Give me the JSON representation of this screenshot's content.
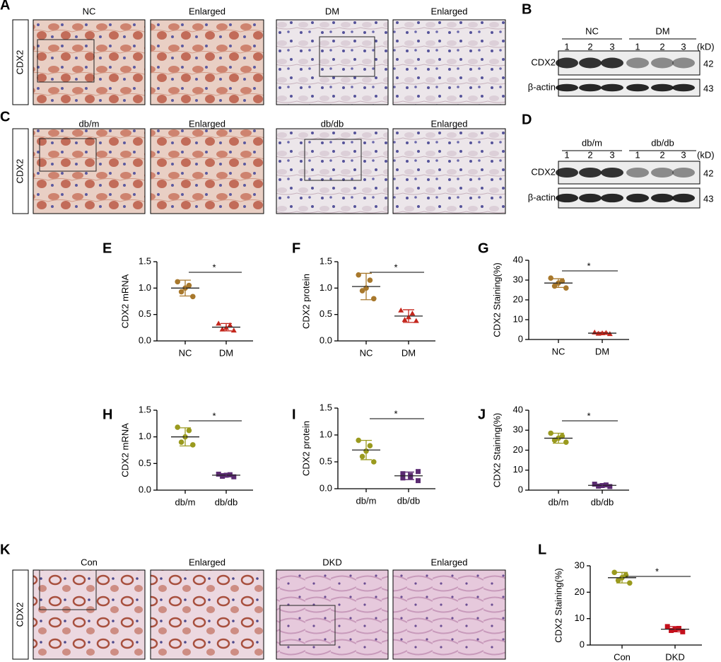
{
  "figure": {
    "panels": [
      {
        "letter": "A",
        "row_label": "CDX2",
        "images": [
          "NC",
          "Enlarged",
          "DM",
          "Enlarged"
        ]
      },
      {
        "letter": "C",
        "row_label": "CDX2",
        "images": [
          "db/m",
          "Enlarged",
          "db/db",
          "Enlarged"
        ]
      },
      {
        "letter": "K",
        "row_label": "CDX2",
        "images": [
          "Con",
          "Enlarged",
          "DKD",
          "Enlarged"
        ]
      }
    ],
    "blots": [
      {
        "letter": "B",
        "groups": [
          "NC",
          "DM"
        ],
        "lanes": [
          1,
          2,
          3,
          1,
          2,
          3
        ],
        "unit": "(kD)",
        "bands": [
          {
            "name": "CDX2",
            "kd": 42
          },
          {
            "name": "β-actin",
            "kd": 43
          }
        ]
      },
      {
        "letter": "D",
        "groups": [
          "db/m",
          "db/db"
        ],
        "lanes": [
          1,
          2,
          3,
          1,
          2,
          3
        ],
        "unit": "(kD)",
        "bands": [
          {
            "name": "CDX2",
            "kd": 42
          },
          {
            "name": "β-actin",
            "kd": 43
          }
        ]
      }
    ]
  },
  "chart_data": [
    {
      "type": "dot",
      "letter": "E",
      "ylabel": "CDX2 mRNA",
      "annotation": "*",
      "ylim": [
        0,
        1.5
      ],
      "yticks": [
        {
          "value": 0,
          "label": "0.0"
        },
        0.5,
        {
          "value": 1,
          "label": "1.0"
        },
        1.5
      ],
      "groups": [
        {
          "name": "NC",
          "color": "#a8782c",
          "marker": "circle",
          "values": [
            0.84,
            0.93,
            1.0,
            1.05,
            1.12
          ],
          "mean": 1.0,
          "sd": 0.15
        },
        {
          "name": "DM",
          "color": "#c4261c",
          "marker": "triangle",
          "values": [
            0.2,
            0.22,
            0.25,
            0.3,
            0.33
          ],
          "mean": 0.26,
          "sd": 0.07
        }
      ]
    },
    {
      "type": "dot",
      "letter": "F",
      "ylabel": "CDX2 protein",
      "annotation": "*",
      "ylim": [
        0,
        1.5
      ],
      "yticks": [
        {
          "value": 0,
          "label": "0.0"
        },
        0.5,
        {
          "value": 1,
          "label": "1.0"
        },
        1.5
      ],
      "groups": [
        {
          "name": "NC",
          "color": "#a8782c",
          "marker": "circle",
          "values": [
            0.8,
            0.95,
            1.0,
            1.15,
            1.25
          ],
          "mean": 1.03,
          "sd": 0.25
        },
        {
          "name": "DM",
          "color": "#c4261c",
          "marker": "triangle",
          "values": [
            0.38,
            0.4,
            0.45,
            0.52,
            0.58
          ],
          "mean": 0.47,
          "sd": 0.12
        }
      ]
    },
    {
      "type": "dot",
      "letter": "G",
      "ylabel": "CDX2 Staining(%)",
      "annotation": "*",
      "ylim": [
        0,
        40
      ],
      "yticks": [
        0,
        10,
        20,
        30,
        40
      ],
      "groups": [
        {
          "name": "NC",
          "color": "#a8782c",
          "marker": "circle",
          "values": [
            26,
            27,
            28.5,
            29.5,
            31
          ],
          "mean": 28.5,
          "sd": 2.2
        },
        {
          "name": "DM",
          "color": "#c4261c",
          "marker": "triangle",
          "values": [
            2.8,
            3,
            3.2,
            3.4,
            3.6
          ],
          "mean": 3.2,
          "sd": 0.4
        }
      ]
    },
    {
      "type": "dot",
      "letter": "H",
      "ylabel": "CDX2 mRNA",
      "annotation": "*",
      "ylim": [
        0,
        1.5
      ],
      "yticks": [
        {
          "value": 0,
          "label": "0.0"
        },
        0.5,
        {
          "value": 1,
          "label": "1.0"
        },
        1.5
      ],
      "groups": [
        {
          "name": "db/m",
          "color": "#9a9a1e",
          "marker": "circle",
          "values": [
            0.85,
            0.9,
            1.0,
            1.12,
            1.18
          ],
          "mean": 1.0,
          "sd": 0.17
        },
        {
          "name": "db/db",
          "color": "#5b2b72",
          "marker": "square",
          "values": [
            0.25,
            0.26,
            0.28,
            0.29,
            0.3
          ],
          "mean": 0.28,
          "sd": 0.03
        }
      ]
    },
    {
      "type": "dot",
      "letter": "I",
      "ylabel": "CDX2 protein",
      "annotation": "*",
      "ylim": [
        0,
        1.5
      ],
      "yticks": [
        {
          "value": 0,
          "label": "0.0"
        },
        0.5,
        {
          "value": 1,
          "label": "1.0"
        },
        1.5
      ],
      "groups": [
        {
          "name": "db/m",
          "color": "#9a9a1e",
          "marker": "circle",
          "values": [
            0.5,
            0.6,
            0.7,
            0.8,
            0.9
          ],
          "mean": 0.72,
          "sd": 0.18
        },
        {
          "name": "db/db",
          "color": "#5b2b72",
          "marker": "square",
          "values": [
            0.15,
            0.2,
            0.22,
            0.25,
            0.28,
            0.32
          ],
          "mean": 0.24,
          "sd": 0.07
        }
      ]
    },
    {
      "type": "dot",
      "letter": "J",
      "ylabel": "CDX2 Staining(%)",
      "annotation": "*",
      "ylim": [
        0,
        40
      ],
      "yticks": [
        0,
        10,
        20,
        30,
        40
      ],
      "groups": [
        {
          "name": "db/m",
          "color": "#9a9a1e",
          "marker": "circle",
          "values": [
            24,
            25,
            26,
            27,
            28.5
          ],
          "mean": 26,
          "sd": 2.5
        },
        {
          "name": "db/db",
          "color": "#5b2b72",
          "marker": "square",
          "values": [
            1.8,
            2,
            2.3,
            2.6,
            3
          ],
          "mean": 2.4,
          "sd": 0.6
        }
      ]
    },
    {
      "type": "dot",
      "letter": "L",
      "ylabel": "CDX2 Staining(%)",
      "annotation": "*",
      "ylim": [
        0,
        30
      ],
      "yticks": [
        0,
        10,
        20,
        30
      ],
      "groups": [
        {
          "name": "Con",
          "color": "#9a9a1e",
          "marker": "circle",
          "values": [
            23.5,
            24.5,
            25.5,
            26.5,
            27.5
          ],
          "mean": 25.5,
          "sd": 2
        },
        {
          "name": "DKD",
          "color": "#c4101c",
          "marker": "square",
          "values": [
            5,
            5.5,
            6,
            6.3,
            7
          ],
          "mean": 6,
          "sd": 1
        }
      ]
    }
  ]
}
